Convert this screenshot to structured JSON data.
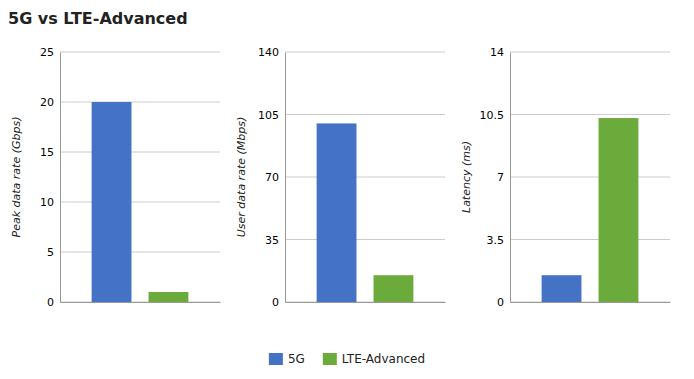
{
  "chart_data": [
    {
      "type": "bar",
      "title": "5G vs LTE-Advanced",
      "ylabel": "Peak data rate (Gbps)",
      "categories": [
        null
      ],
      "series": [
        {
          "name": "5G",
          "color": "#4472C4",
          "values": [
            20
          ]
        },
        {
          "name": "LTE-Advanced",
          "color": "#6AAB3C",
          "values": [
            1
          ]
        }
      ],
      "ylim": [
        0,
        25
      ],
      "yticks": [
        0,
        5,
        10,
        15,
        20,
        25
      ],
      "grid": true,
      "legend": "bottom"
    },
    {
      "type": "bar",
      "ylabel": "User data rate (Mbps)",
      "categories": [
        null
      ],
      "series": [
        {
          "name": "5G",
          "color": "#4472C4",
          "values": [
            100
          ]
        },
        {
          "name": "LTE-Advanced",
          "color": "#6AAB3C",
          "values": [
            15
          ]
        }
      ],
      "ylim": [
        0,
        140
      ],
      "yticks": [
        0,
        35,
        70,
        105,
        140
      ],
      "grid": true
    },
    {
      "type": "bar",
      "ylabel": "Latency (ms)",
      "categories": [
        null
      ],
      "series": [
        {
          "name": "5G",
          "color": "#4472C4",
          "values": [
            1.5
          ]
        },
        {
          "name": "LTE-Advanced",
          "color": "#6AAB3C",
          "values": [
            10.3
          ]
        }
      ],
      "ylim": [
        0,
        14
      ],
      "yticks": [
        0,
        3.5,
        7,
        10.5,
        14
      ],
      "grid": true
    }
  ]
}
